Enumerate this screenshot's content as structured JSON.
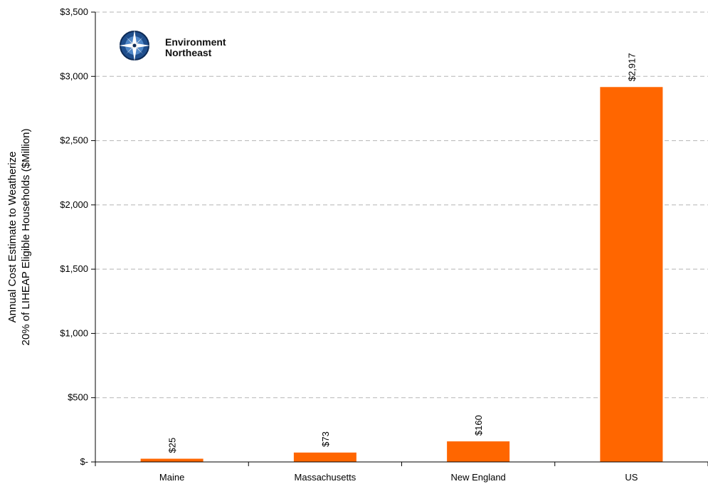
{
  "chart_data": {
    "type": "bar",
    "categories": [
      "Maine",
      "Massachusetts",
      "New England",
      "US"
    ],
    "values": [
      25,
      73,
      160,
      2917
    ],
    "value_labels": [
      "$25",
      "$73",
      "$160",
      "$2,917"
    ],
    "ylabel_lines": [
      "Annual Cost Estimate to Weatherize",
      "20% of LIHEAP Eligible Households ($Million)"
    ],
    "ylim": [
      0,
      3500
    ],
    "yticks": [
      0,
      500,
      1000,
      1500,
      2000,
      2500,
      3000,
      3500
    ],
    "ytick_labels": [
      "$-",
      "$500",
      "$1,000",
      "$1,500",
      "$2,000",
      "$2,500",
      "$3,000",
      "$3,500"
    ],
    "grid": "horizontal dashed",
    "bar_color": "#FF6600"
  },
  "logo": {
    "line1": "Environment",
    "line2": "Northeast",
    "icon": "compass-rose-icon"
  }
}
